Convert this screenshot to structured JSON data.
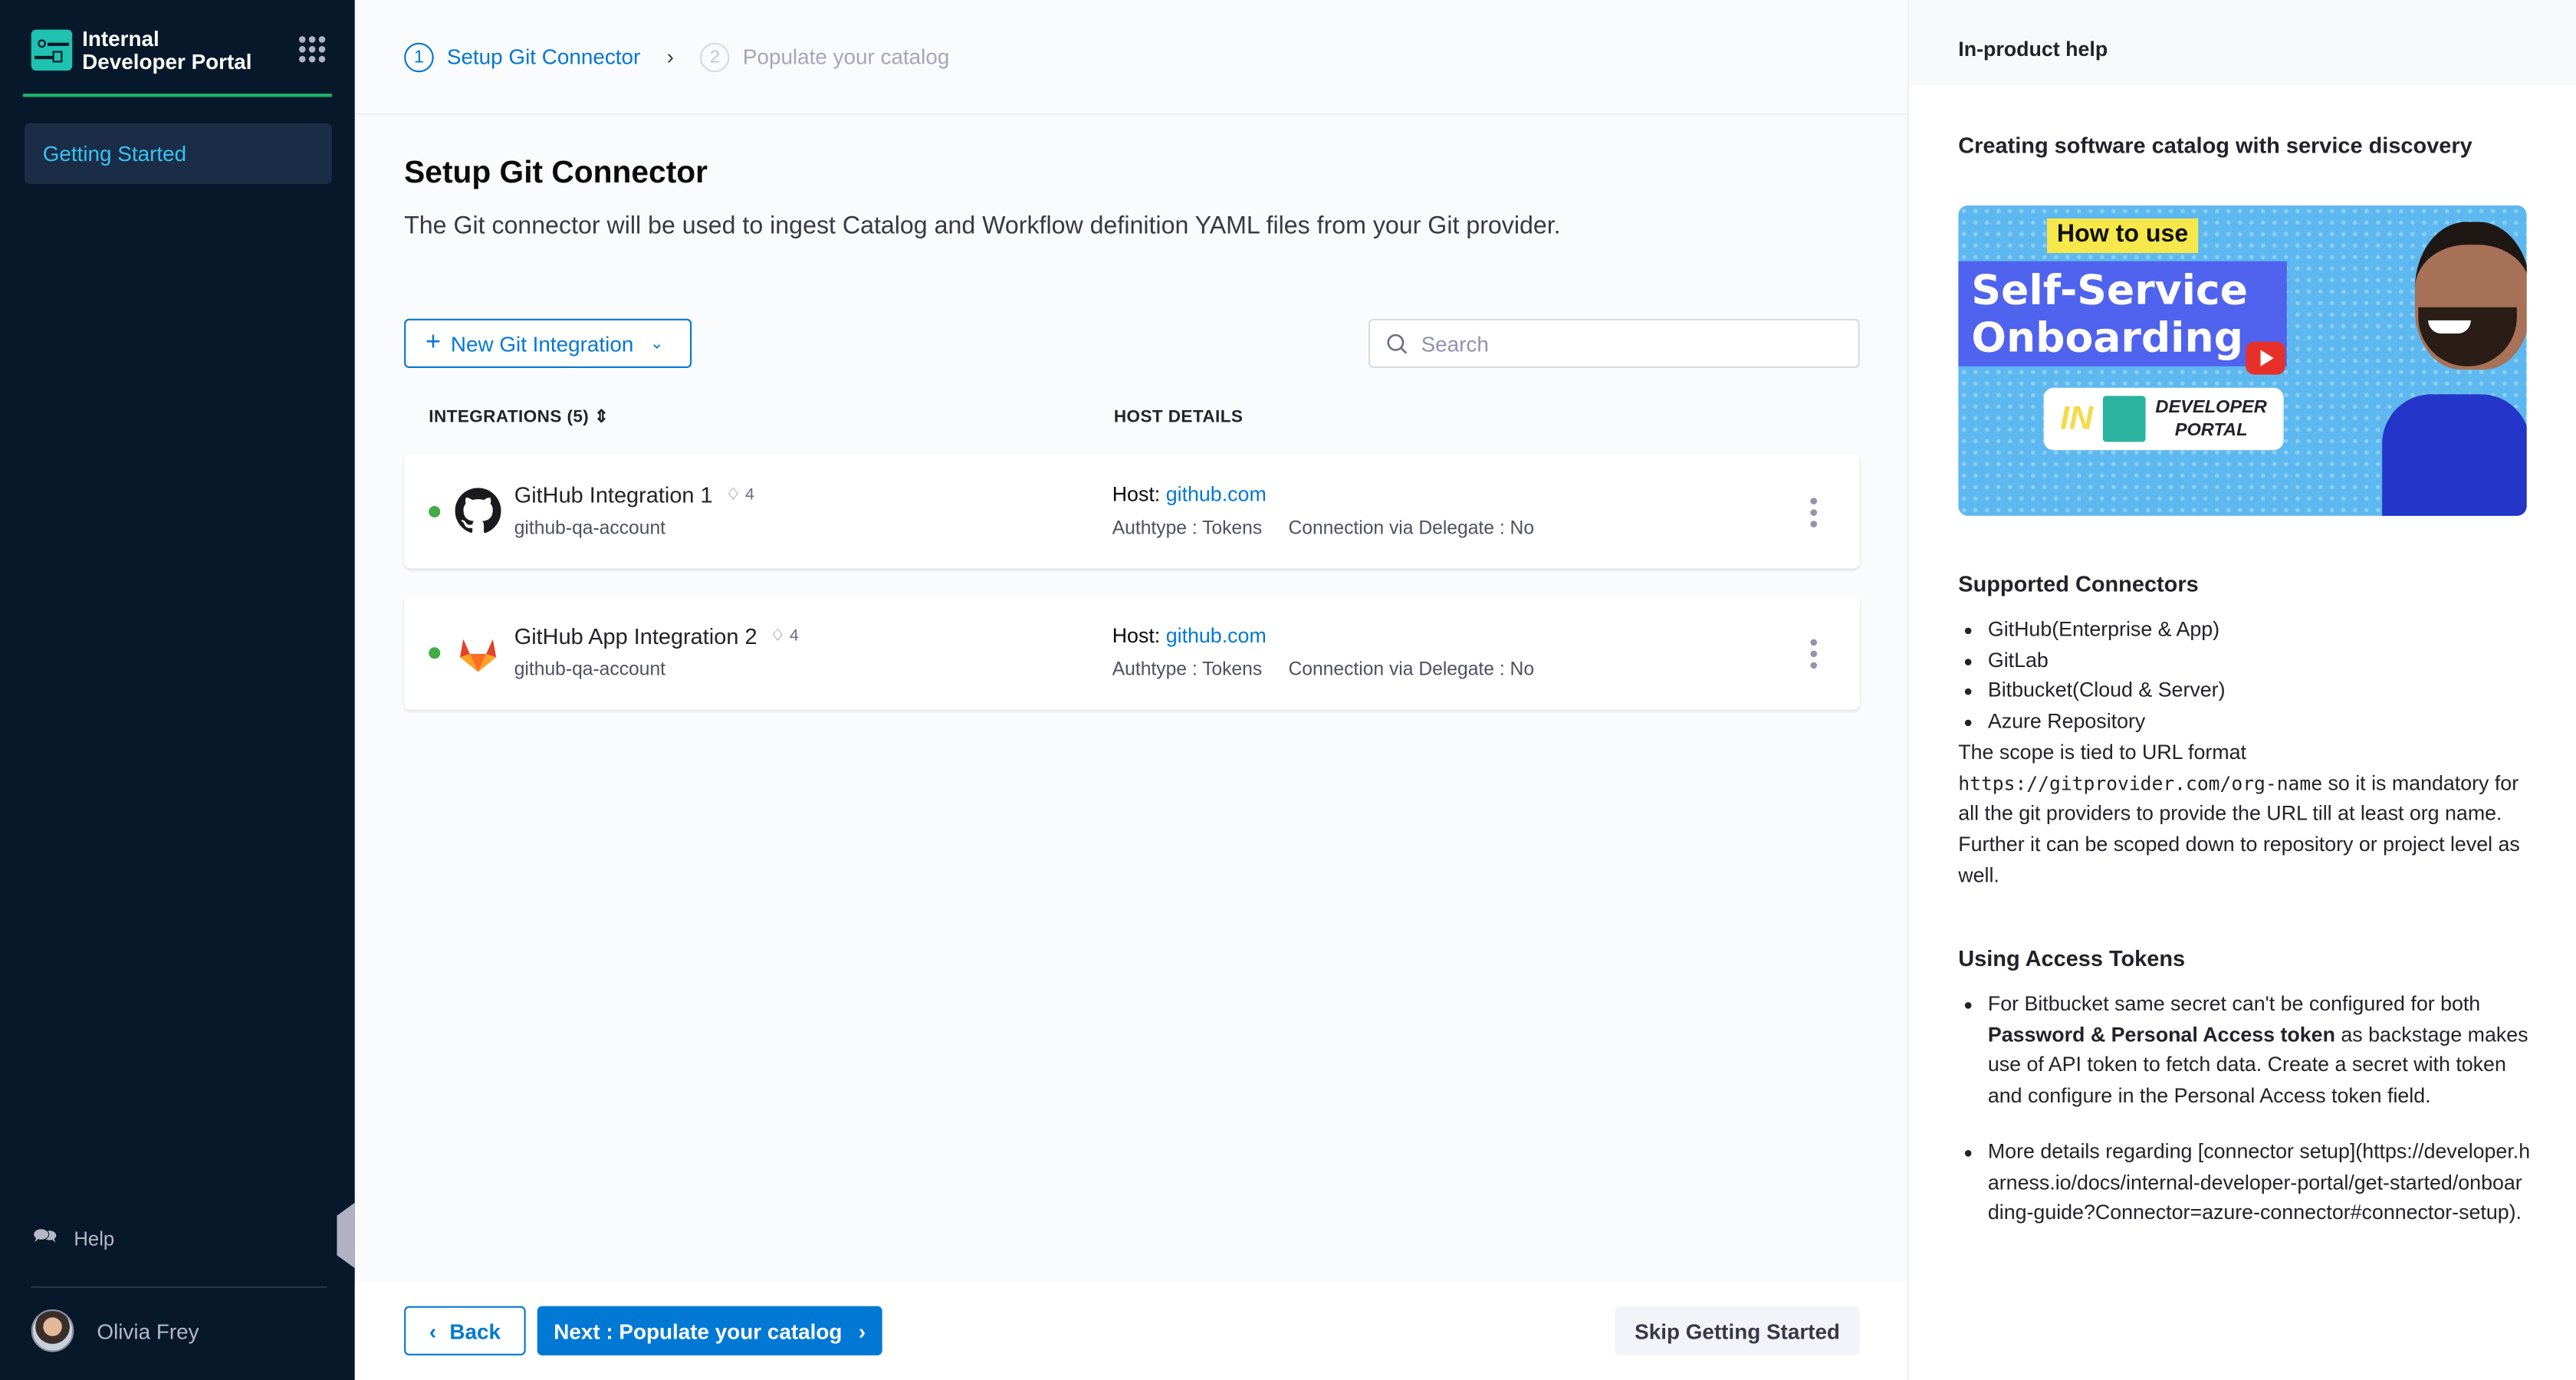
{
  "sidebar": {
    "brand_line1": "Internal",
    "brand_line2": "Developer Portal",
    "nav_items": [
      {
        "label": "Getting Started",
        "active": true
      }
    ],
    "help_label": "Help",
    "user_name": "Olivia Frey",
    "accent": "#37c3f0"
  },
  "stepper": {
    "steps": [
      {
        "number": "1",
        "label": "Setup Git Connector",
        "active": true
      },
      {
        "number": "2",
        "label": "Populate your catalog",
        "active": false
      }
    ]
  },
  "main": {
    "title": "Setup Git Connector",
    "description": "The Git connector will be used to ingest Catalog and Workflow definition YAML files from your Git provider.",
    "new_button": "New Git Integration",
    "search_placeholder": "Search",
    "columns": [
      "INTEGRATIONS (5)",
      "HOST DETAILS"
    ],
    "integrations": [
      {
        "name": "GitHub Integration 1",
        "tags": "4",
        "account": "github-qa-account",
        "host_label": "Host:",
        "host": "github.com",
        "authtype": "Authtype : Tokens",
        "delegate": "Connection via Delegate : No",
        "icon": "github-icon",
        "status": "connected"
      },
      {
        "name": "GitHub App Integration 2",
        "tags": "4",
        "account": "github-qa-account",
        "host_label": "Host:",
        "host": "github.com",
        "authtype": "Authtype : Tokens",
        "delegate": "Connection via Delegate : No",
        "icon": "gitlab-icon",
        "status": "connected"
      }
    ]
  },
  "footer": {
    "back": "Back",
    "next": "Next : Populate your catalog",
    "skip": "Skip Getting Started"
  },
  "help": {
    "header": "In-product help",
    "title": "Creating software catalog with service discovery",
    "video": {
      "line1": "How to use",
      "line2": "Self-Service",
      "line3": "Onboarding",
      "line4": "IN",
      "line5": "DEVELOPER",
      "line6": "PORTAL"
    },
    "supported_title": "Supported Connectors",
    "connectors": [
      "GitHub(Enterprise & App)",
      "GitLab",
      "Bitbucket(Cloud & Server)",
      "Azure Repository"
    ],
    "scope_pre": "The scope is tied to URL format ",
    "scope_code": "https://gitprovider.com/org-name",
    "scope_post": " so it is mandatory for all the git providers to provide the URL till at least org name. Further it can be scoped down to repository or project level as well.",
    "tokens_title": "Using Access Tokens",
    "token_b1_pre": "For Bitbucket same secret can't be configured for both ",
    "token_b1_bold": "Password & Personal Access token",
    "token_b1_post": " as backstage makes use of API token to fetch data. Create a secret with token and configure in the Personal Access token field.",
    "token_b2": "More details regarding [connector setup](https://developer.harness.io/docs/internal-developer-portal/get-started/onboarding-guide?Connector=azure-connector#connector-setup)."
  }
}
